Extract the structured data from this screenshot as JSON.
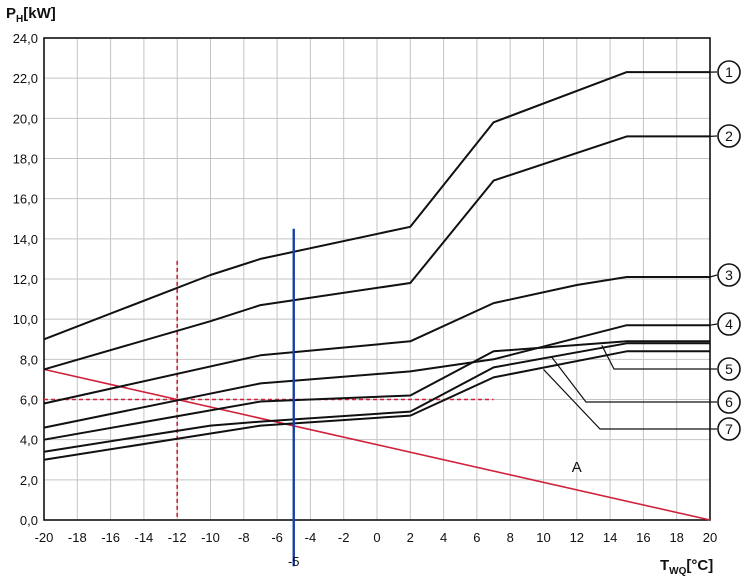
{
  "chart_data": {
    "type": "line",
    "ylabel": {
      "main": "P",
      "sub": "H",
      "unit": "[kW]"
    },
    "xlabel": {
      "main": "T",
      "sub": "WQ",
      "unit": "[°C]"
    },
    "xlim": [
      -20,
      20
    ],
    "ylim": [
      0,
      24
    ],
    "x_ticks": [
      -20,
      -18,
      -16,
      -14,
      -12,
      -10,
      -8,
      -6,
      -4,
      -2,
      0,
      2,
      4,
      6,
      8,
      10,
      12,
      14,
      16,
      18,
      20
    ],
    "y_ticks": [
      "0,0",
      "2,0",
      "4,0",
      "6,0",
      "8,0",
      "10,0",
      "12,0",
      "14,0",
      "16,0",
      "18,0",
      "20,0",
      "22,0",
      "24,0"
    ],
    "grid": true,
    "colors": {
      "curve": "#111111",
      "load_line": "#d0213b",
      "marker_line": "#1a3ea6",
      "reference": "#d0213b",
      "grid": "#c4c4c4"
    },
    "series": [
      {
        "label": "1",
        "points": [
          [
            -20,
            9.0
          ],
          [
            -10,
            12.2
          ],
          [
            -7,
            13.0
          ],
          [
            2,
            14.6
          ],
          [
            7,
            19.8
          ],
          [
            15,
            22.3
          ],
          [
            20,
            22.3
          ]
        ]
      },
      {
        "label": "2",
        "points": [
          [
            -20,
            7.5
          ],
          [
            -10,
            9.9
          ],
          [
            -7,
            10.7
          ],
          [
            2,
            11.8
          ],
          [
            7,
            16.9
          ],
          [
            15,
            19.1
          ],
          [
            20,
            19.1
          ]
        ]
      },
      {
        "label": "3",
        "points": [
          [
            -20,
            5.8
          ],
          [
            -7,
            8.2
          ],
          [
            2,
            8.9
          ],
          [
            7,
            10.8
          ],
          [
            12,
            11.7
          ],
          [
            15,
            12.1
          ],
          [
            20,
            12.1
          ]
        ]
      },
      {
        "label": "4",
        "points": [
          [
            -20,
            4.6
          ],
          [
            -7,
            6.8
          ],
          [
            2,
            7.4
          ],
          [
            7,
            8.0
          ],
          [
            15,
            9.7
          ],
          [
            20,
            9.7
          ]
        ]
      },
      {
        "label": "5",
        "points": [
          [
            -20,
            4.0
          ],
          [
            -7,
            5.9
          ],
          [
            2,
            6.2
          ],
          [
            7,
            8.4
          ],
          [
            15,
            8.9
          ],
          [
            20,
            8.9
          ]
        ]
      },
      {
        "label": "6",
        "points": [
          [
            -20,
            3.4
          ],
          [
            -10,
            4.7
          ],
          [
            -7,
            4.9
          ],
          [
            2,
            5.4
          ],
          [
            7,
            7.6
          ],
          [
            15,
            8.8
          ],
          [
            20,
            8.8
          ]
        ]
      },
      {
        "label": "7",
        "points": [
          [
            -20,
            3.0
          ],
          [
            -7,
            4.7
          ],
          [
            2,
            5.2
          ],
          [
            7,
            7.1
          ],
          [
            15,
            8.4
          ],
          [
            20,
            8.4
          ]
        ]
      }
    ],
    "load_line": {
      "label": "A",
      "label_at": [
        12,
        2.4
      ],
      "points": [
        [
          -20,
          7.5
        ],
        [
          20,
          0
        ]
      ]
    },
    "marker_line": {
      "x": -5,
      "label": "-5",
      "y_range": [
        -2.3,
        14.5
      ]
    },
    "reference_lines": {
      "x": -12,
      "y": 6.0,
      "x_span_top": 12.9,
      "y_span_right": 7
    },
    "callouts": [
      {
        "label": "1",
        "anchor": [
          20,
          22.3
        ]
      },
      {
        "label": "2",
        "anchor": [
          20,
          19.1
        ]
      },
      {
        "label": "3",
        "anchor": [
          20,
          12.1
        ]
      },
      {
        "label": "4",
        "anchor": [
          20,
          9.7
        ]
      },
      {
        "label": "5",
        "anchor": [
          13.5,
          8.7
        ]
      },
      {
        "label": "6",
        "anchor": [
          10.5,
          8.1
        ]
      },
      {
        "label": "7",
        "anchor": [
          10,
          7.5
        ]
      }
    ]
  }
}
